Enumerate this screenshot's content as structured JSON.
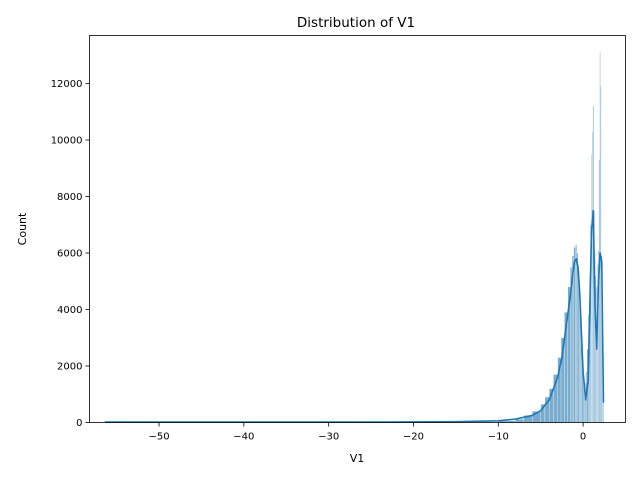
{
  "chart_data": {
    "type": "bar",
    "title": "Distribution of V1",
    "xlabel": "V1",
    "ylabel": "Count",
    "xlim": [
      -58.2,
      5.0
    ],
    "ylim": [
      0,
      13700
    ],
    "xticks": [
      -50,
      -40,
      -30,
      -20,
      -10,
      0
    ],
    "xtick_labels": [
      "−50",
      "−40",
      "−30",
      "−20",
      "−10",
      "0"
    ],
    "yticks": [
      0,
      2000,
      4000,
      6000,
      8000,
      10000,
      12000
    ],
    "ytick_labels": [
      "0",
      "2000",
      "4000",
      "6000",
      "8000",
      "10000",
      "12000"
    ],
    "grid": false,
    "legend": "none",
    "bar_color": "#4c8fbd",
    "kde_color": "#1f77b4",
    "bins": {
      "x": [
        -10,
        -8,
        -7,
        -6,
        -5,
        -4.5,
        -4,
        -3.5,
        -3,
        -2.6,
        -2.2,
        -1.8,
        -1.5,
        -1.3,
        -1.1,
        -0.9,
        -0.75,
        -0.6,
        -0.45,
        -0.3,
        -0.15,
        0,
        0.15,
        0.3,
        0.45,
        0.6,
        0.75,
        0.85,
        0.95,
        1.05,
        1.15,
        1.25,
        1.35,
        1.45,
        1.55,
        1.65,
        1.75,
        1.85,
        1.95,
        2.05,
        2.15,
        2.25,
        2.35
      ],
      "values": [
        60,
        120,
        250,
        400,
        650,
        900,
        1200,
        1700,
        2300,
        3000,
        3900,
        4800,
        5500,
        5900,
        6200,
        6300,
        6000,
        5400,
        4400,
        3300,
        2200,
        1600,
        1400,
        1800,
        2600,
        3800,
        5200,
        7000,
        9500,
        10300,
        11200,
        7500,
        6000,
        5200,
        4800,
        5600,
        6100,
        9300,
        13100,
        11900,
        5900,
        3000,
        700
      ]
    },
    "kde": {
      "x": [
        -56.4,
        -50,
        -40,
        -30,
        -20,
        -15,
        -10,
        -8,
        -6,
        -5,
        -4,
        -3,
        -2.5,
        -2,
        -1.5,
        -1.2,
        -1,
        -0.8,
        -0.6,
        -0.4,
        -0.2,
        0,
        0.3,
        0.6,
        0.8,
        1,
        1.2,
        1.4,
        1.6,
        1.8,
        2,
        2.2,
        2.4
      ],
      "y": [
        15,
        15,
        15,
        15,
        20,
        30,
        60,
        120,
        250,
        420,
        800,
        1600,
        2300,
        3400,
        4500,
        5300,
        5700,
        5800,
        5500,
        4600,
        3200,
        1800,
        800,
        1500,
        4200,
        6800,
        7500,
        4200,
        2600,
        4800,
        6000,
        5700,
        700
      ]
    }
  }
}
